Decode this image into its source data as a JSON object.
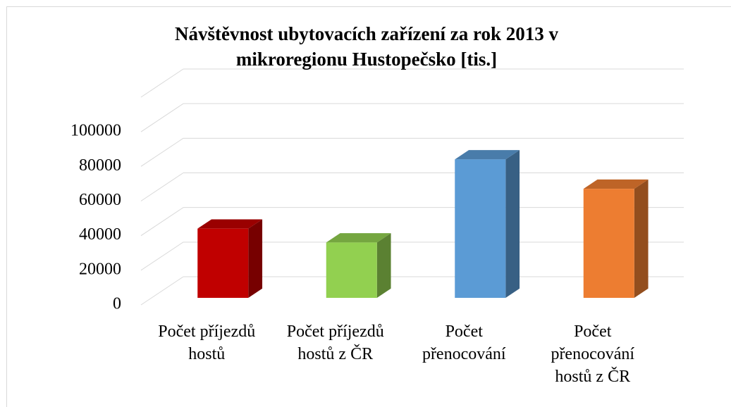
{
  "chart_data": {
    "type": "bar3d",
    "title": "Návštěvnost ubytovacích zařízení za rok 2013 v mikroregionu Hustopečsko [tis.]",
    "categories": [
      "Počet příjezdů hostů",
      "Počet příjezdů hostů z ČR",
      "Počet přenocování",
      "Počet přenocování hostů z ČR"
    ],
    "values": [
      40000,
      32000,
      80000,
      63000
    ],
    "colors": [
      "#c00000",
      "#92d050",
      "#5b9bd5",
      "#ed7d31"
    ],
    "ylim": [
      0,
      120000
    ],
    "yticks": [
      0,
      20000,
      40000,
      60000,
      80000,
      100000
    ],
    "grid": true
  }
}
